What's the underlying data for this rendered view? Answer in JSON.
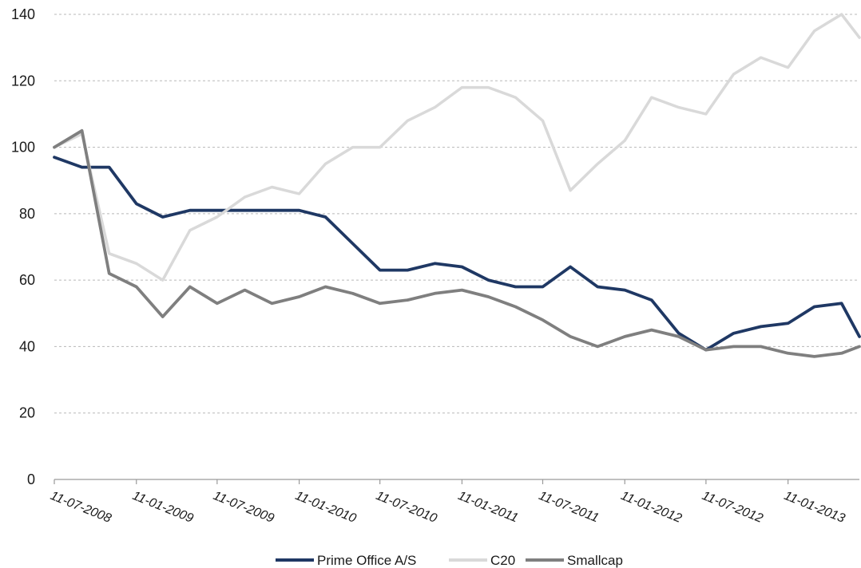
{
  "chart_data": {
    "type": "line",
    "title": "",
    "xlabel": "",
    "ylabel": "",
    "ylim": [
      0,
      140
    ],
    "yticks": [
      0,
      20,
      40,
      60,
      80,
      100,
      120,
      140
    ],
    "grid": "horizontal dashed",
    "legend_position": "bottom",
    "x_tick_labels": [
      "11-07-2008",
      "11-01-2009",
      "11-07-2009",
      "11-01-2010",
      "11-07-2010",
      "11-01-2011",
      "11-07-2011",
      "11-01-2012",
      "11-07-2012",
      "11-01-2013"
    ],
    "x_range": [
      "2008-07-11",
      "2013-06-20"
    ],
    "x": [
      "2008-07-11",
      "2008-09-11",
      "2008-11-11",
      "2009-01-11",
      "2009-03-11",
      "2009-05-11",
      "2009-07-11",
      "2009-09-11",
      "2009-11-11",
      "2010-01-11",
      "2010-03-11",
      "2010-05-11",
      "2010-07-11",
      "2010-09-11",
      "2010-11-11",
      "2011-01-11",
      "2011-03-11",
      "2011-05-11",
      "2011-07-11",
      "2011-09-11",
      "2011-11-11",
      "2012-01-11",
      "2012-03-11",
      "2012-05-11",
      "2012-07-11",
      "2012-09-11",
      "2012-11-11",
      "2013-01-11",
      "2013-03-11",
      "2013-05-11",
      "2013-06-20"
    ],
    "series": [
      {
        "name": "Prime Office A/S",
        "color": "#1f3864",
        "values": [
          97,
          94,
          94,
          83,
          79,
          81,
          81,
          81,
          81,
          81,
          79,
          71,
          63,
          63,
          65,
          64,
          60,
          58,
          58,
          64,
          58,
          57,
          54,
          44,
          39,
          44,
          46,
          47,
          52,
          53,
          43
        ]
      },
      {
        "name": "C20",
        "color": "#d9d9d9",
        "values": [
          100,
          104,
          68,
          65,
          60,
          75,
          79,
          85,
          88,
          86,
          95,
          100,
          100,
          108,
          112,
          118,
          118,
          115,
          108,
          87,
          95,
          102,
          115,
          112,
          110,
          122,
          127,
          124,
          135,
          140,
          133
        ]
      },
      {
        "name": "Smallcap",
        "color": "#7f7f7f",
        "values": [
          100,
          105,
          62,
          58,
          49,
          58,
          53,
          57,
          53,
          55,
          58,
          56,
          53,
          54,
          56,
          57,
          55,
          52,
          48,
          43,
          40,
          43,
          45,
          43,
          39,
          40,
          40,
          38,
          37,
          38,
          40
        ]
      }
    ]
  }
}
